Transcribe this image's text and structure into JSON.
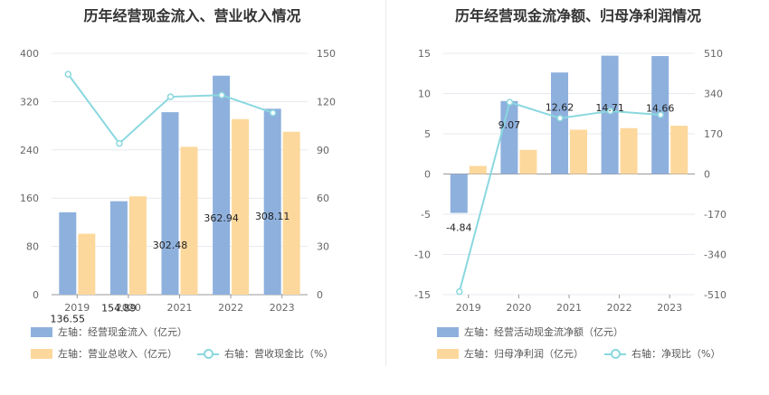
{
  "colors": {
    "bar1": "#8eb0dd",
    "bar2": "#fdd89c",
    "line": "#8ad8df",
    "grid": "#e6e9ef",
    "axis": "#999999"
  },
  "charts": [
    {
      "title": "历年经营现金流入、营业收入情况",
      "legend": [
        "左轴：经营现金流入（亿元）",
        "左轴：营业总收入（亿元）",
        "右轴：营收现金比（%）"
      ],
      "chart_data": {
        "type": "bar",
        "categories": [
          "2019",
          "2020",
          "2021",
          "2022",
          "2023"
        ],
        "series": [
          {
            "name": "左轴：经营现金流入（亿元）",
            "axis": "left",
            "values": [
              136.55,
              154.89,
              302.48,
              362.94,
              308.11
            ],
            "data_labels": [
              "136.55",
              "154.89",
              "302.48",
              "362.94",
              "308.11"
            ]
          },
          {
            "name": "左轴：营业总收入（亿元）",
            "axis": "left",
            "values": [
              101,
              163,
              245,
              291,
              270
            ]
          },
          {
            "name": "右轴：营收现金比（%）",
            "axis": "right",
            "type": "line",
            "values": [
              137,
              94,
              123,
              124,
              113
            ]
          }
        ],
        "left_axis": {
          "ticks": [
            "0",
            "80",
            "160",
            "240",
            "320",
            "400"
          ],
          "min": 0,
          "max": 400
        },
        "right_axis": {
          "ticks": [
            "0",
            "30",
            "60",
            "90",
            "120",
            "150"
          ],
          "min": 0,
          "max": 150
        }
      }
    },
    {
      "title": "历年经营现金流净额、归母净利润情况",
      "legend": [
        "左轴：经营活动现金流净额（亿元）",
        "左轴：归母净利润（亿元）",
        "右轴：净现比（%）"
      ],
      "chart_data": {
        "type": "bar",
        "categories": [
          "2019",
          "2020",
          "2021",
          "2022",
          "2023"
        ],
        "series": [
          {
            "name": "左轴：经营活动现金流净额（亿元）",
            "axis": "left",
            "values": [
              -4.84,
              9.07,
              12.62,
              14.71,
              14.66
            ],
            "data_labels": [
              "-4.84",
              "9.07",
              "12.62",
              "14.71",
              "14.66"
            ]
          },
          {
            "name": "左轴：归母净利润（亿元）",
            "axis": "left",
            "values": [
              1.0,
              3.0,
              5.5,
              5.7,
              6.0
            ]
          },
          {
            "name": "右轴：净现比（%）",
            "axis": "right",
            "type": "line",
            "values": [
              -497,
              303,
              236,
              266,
              250
            ]
          }
        ],
        "left_axis": {
          "ticks": [
            "-15",
            "-10",
            "-5",
            "0",
            "5",
            "10",
            "15"
          ],
          "min": -15,
          "max": 15
        },
        "right_axis": {
          "ticks": [
            "-510",
            "-340",
            "-170",
            "0",
            "170",
            "340",
            "510"
          ],
          "min": -510,
          "max": 510
        }
      }
    }
  ]
}
